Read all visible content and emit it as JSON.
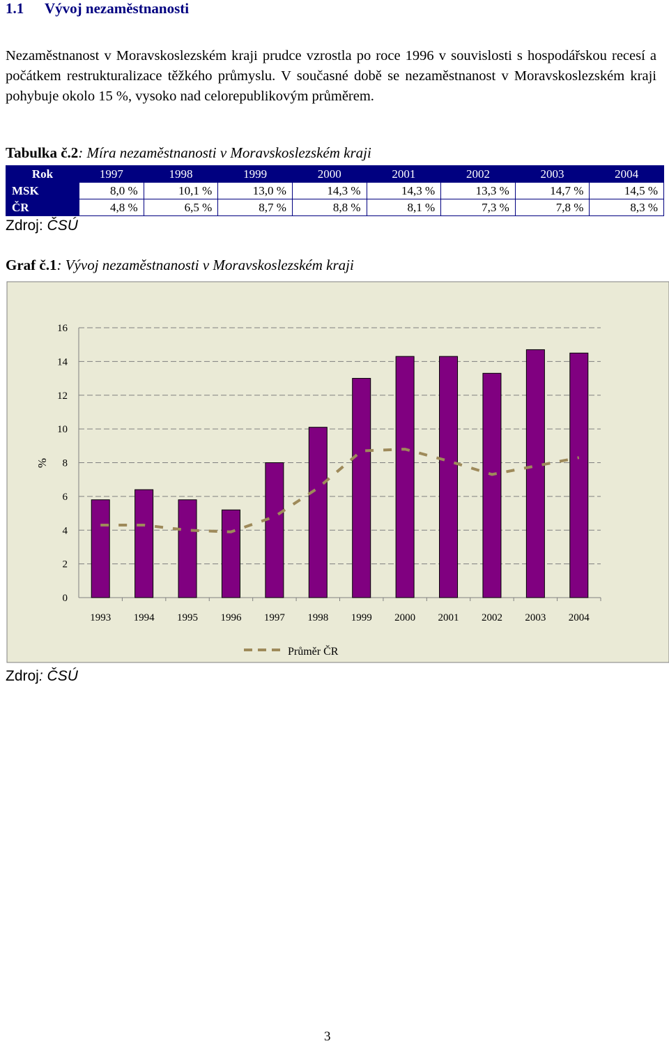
{
  "heading": {
    "number": "1.1",
    "title": "Vývoj nezaměstnanosti"
  },
  "paragraph": "Nezaměstnanost v Moravskoslezském kraji prudce vzrostla po roce 1996 v souvislosti s hospodářskou recesí a počátkem restrukturalizace těžkého průmyslu. V současné době se nezaměstnanost v Moravskoslezském kraji pohybuje okolo 15 %, vysoko nad celorepublikovým průměrem.",
  "table_caption": {
    "prefix": "Tabulka č.2",
    "text": ": Míra nezaměstnanosti v Moravskoslezském kraji"
  },
  "table": {
    "header": [
      "Rok",
      "1997",
      "1998",
      "1999",
      "2000",
      "2001",
      "2002",
      "2003",
      "2004"
    ],
    "rows": [
      [
        "MSK",
        "8,0 %",
        "10,1 %",
        "13,0 %",
        "14,3 %",
        "14,3 %",
        "13,3 %",
        "14,7 %",
        "14,5 %"
      ],
      [
        "ČR",
        "4,8 %",
        "6,5 %",
        "8,7 %",
        "8,8 %",
        "8,1 %",
        "7,3 %",
        "7,8 %",
        "8,3 %"
      ]
    ]
  },
  "source_1": {
    "label": "Zdroj:",
    "value": " ČSÚ"
  },
  "graph_caption": {
    "prefix": "Graf č.1",
    "text": ": Vývoj nezaměstnanosti v Moravskoslezském kraji"
  },
  "source_2": {
    "label": "Zdroj",
    "value": ": ČSÚ"
  },
  "page_number": "3",
  "colors": {
    "table_header": "#000080",
    "bars": "#800080",
    "line": "#9E8A5A",
    "plot_bg": "#EAEAD6"
  },
  "chart_data": {
    "type": "bar",
    "categories": [
      "1993",
      "1994",
      "1995",
      "1996",
      "1997",
      "1998",
      "1999",
      "2000",
      "2001",
      "2002",
      "2003",
      "2004"
    ],
    "series": [
      {
        "values": [
          5.8,
          6.4,
          5.8,
          5.2,
          8.0,
          10.1,
          13.0,
          14.3,
          14.3,
          13.3,
          14.7,
          14.5
        ],
        "style": "bar"
      },
      {
        "name": "Průměr ČR",
        "values": [
          4.3,
          4.3,
          4.0,
          3.9,
          4.8,
          6.5,
          8.7,
          8.8,
          8.1,
          7.3,
          7.8,
          8.3
        ],
        "style": "dashed-line"
      }
    ],
    "ylabel": "%",
    "ylim": [
      0,
      16
    ],
    "yticks": [
      "0",
      "2",
      "4",
      "6",
      "8",
      "10",
      "12",
      "14",
      "16"
    ],
    "grid": true,
    "legend": "bottom"
  }
}
